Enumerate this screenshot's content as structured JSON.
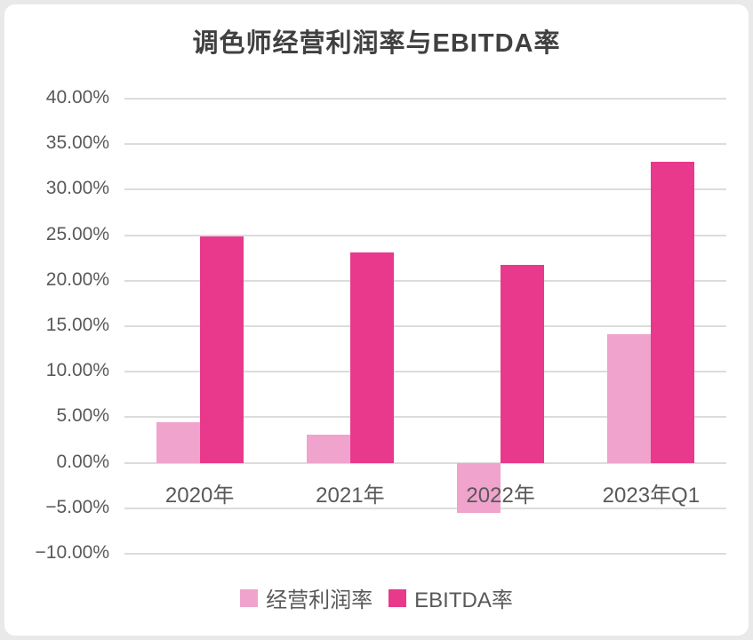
{
  "page": {
    "background": "#e9e9e9",
    "card_background": "#ffffff"
  },
  "chart_data": {
    "type": "bar",
    "title": "调色师经营利润率与EBITDA率",
    "categories": [
      "2020年",
      "2021年",
      "2022年",
      "2023年Q1"
    ],
    "series": [
      {
        "name": "经营利润率",
        "color": "#F0A3CC",
        "values": [
          4.5,
          3.1,
          -5.5,
          14.1
        ]
      },
      {
        "name": "EBITDA率",
        "color": "#E9398C",
        "values": [
          24.9,
          23.1,
          21.7,
          33.1
        ]
      }
    ],
    "y_axis": {
      "min": -10,
      "max": 40,
      "step": 5,
      "tick_labels": [
        "40.00%",
        "35.00%",
        "30.00%",
        "25.00%",
        "20.00%",
        "15.00%",
        "10.00%",
        "5.00%",
        "0.00%",
        "−5.00%",
        "−10.00%"
      ]
    },
    "grid": true,
    "grid_color": "#dcdcdc",
    "legend_position": "bottom"
  }
}
